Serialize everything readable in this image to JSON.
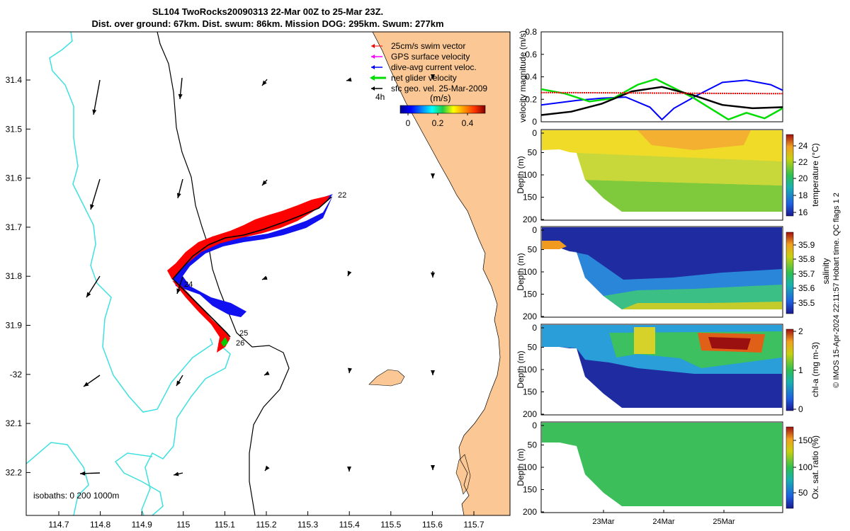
{
  "header": {
    "title_line1": "SL104 TwoRocks20090313 22-Mar 00Z to 25-Mar 23Z.",
    "title_line2": "Dist. over ground: 67km. Dist. swum: 86km. Mission DOG: 295km. Swum: 277km"
  },
  "map": {
    "legend": [
      {
        "label": "25cm/s swim vector",
        "color": "#ff0000"
      },
      {
        "label": "GPS surface velocity",
        "color": "#ff00ff"
      },
      {
        "label": "dive-avg current veloc.",
        "color": "#0000ff"
      },
      {
        "label": "net glider velocity",
        "color": "#00dd00"
      },
      {
        "label": "sfc geo. vel. 25-Mar-2009",
        "color": "#000000"
      }
    ],
    "time_step_label": "4h",
    "colorbar_unit": "(m/s)",
    "colorbar_ticks": [
      "0",
      "0.2",
      "0.4"
    ],
    "isobaths_label": "isobaths: 0   200  1000m",
    "day_labels": [
      {
        "text": "22",
        "lon": 115.37,
        "lat": -31.635
      },
      {
        "text": "24",
        "lon": 115.0,
        "lat": -31.815
      },
      {
        "text": "25",
        "lon": 115.13,
        "lat": -31.915
      },
      {
        "text": "26",
        "lon": 115.12,
        "lat": -31.935
      }
    ],
    "lon_ticks": [
      "114.7",
      "114.8",
      "114.9",
      "115",
      "115.1",
      "115.2",
      "115.3",
      "115.4",
      "115.5",
      "115.6",
      "115.7"
    ],
    "lat_ticks": [
      "31.4",
      "31.5",
      "31.6",
      "31.7",
      "31.8",
      "31.9",
      "-32",
      "32.1",
      "32.2"
    ],
    "colors": {
      "land": "#fbc895",
      "isobath0": "#40e0e0",
      "isobath_deep": "#000000"
    }
  },
  "right_panels": {
    "velocity": {
      "ylabel": "velocity magnitude (m/s)",
      "yticks": [
        "0",
        "0.2",
        "0.4",
        "0.6",
        "0.8"
      ]
    },
    "depth_label": "Depth (m)",
    "depth_ticks": [
      "0",
      "50",
      "100",
      "150",
      "200"
    ],
    "x_ticks": [
      "23Mar",
      "24Mar",
      "25Mar"
    ],
    "temperature": {
      "label": "temperature (°C)",
      "ticks": [
        "16",
        "18",
        "20",
        "22",
        "24"
      ]
    },
    "salinity": {
      "label": "salinity",
      "ticks": [
        "35.5",
        "35.6",
        "35.7",
        "35.8",
        "35.9"
      ]
    },
    "chla": {
      "label": "chl-a (mg m-3)",
      "ticks": [
        "0",
        "1",
        "2"
      ]
    },
    "oxygen": {
      "label": "Ox. sat. ratio (%)",
      "ticks": [
        "50",
        "100",
        "150"
      ]
    }
  },
  "footer_note": "© IMOS 15-Apr-2024 22:11:57 Hobart time. QC flags 1  2",
  "chart_data": [
    {
      "type": "line",
      "title": "",
      "ylabel": "velocity magnitude (m/s)",
      "xlabel": "",
      "x_range": [
        "22-Mar 00Z",
        "25-Mar 23Z"
      ],
      "ylim": [
        0,
        0.8
      ],
      "series": [
        {
          "color": "#0000ff",
          "x_days": [
            0,
            0.3,
            0.6,
            1.0,
            1.4,
            1.8,
            2.0,
            2.2,
            2.6,
            3.0,
            3.4,
            3.8,
            4.0
          ],
          "values": [
            0.15,
            0.17,
            0.19,
            0.21,
            0.22,
            0.13,
            0.02,
            0.12,
            0.24,
            0.35,
            0.37,
            0.33,
            0.28
          ]
        },
        {
          "color": "#00dd00",
          "x_days": [
            0,
            0.4,
            0.8,
            1.2,
            1.6,
            1.9,
            2.2,
            2.5,
            2.8,
            3.1,
            3.4,
            3.7,
            4.0
          ],
          "values": [
            0.29,
            0.25,
            0.18,
            0.21,
            0.33,
            0.38,
            0.3,
            0.22,
            0.12,
            0.02,
            0.08,
            0.03,
            0.12
          ]
        },
        {
          "color": "#000000",
          "x_days": [
            0,
            0.5,
            1.0,
            1.5,
            2.0,
            2.5,
            3.0,
            3.5,
            4.0
          ],
          "values": [
            0.06,
            0.09,
            0.16,
            0.27,
            0.31,
            0.24,
            0.15,
            0.12,
            0.13
          ]
        },
        {
          "color": "#ff0000",
          "x_days": [
            0,
            4.0
          ],
          "values": [
            0.26,
            0.25
          ]
        }
      ]
    },
    {
      "type": "heatmap",
      "title": "",
      "ylabel": "Depth (m)",
      "colorbar_label": "temperature (°C)",
      "clim": [
        15.5,
        25.5
      ],
      "ylim": [
        0,
        200
      ],
      "x_days": [
        0,
        4
      ],
      "description_values": {
        "surface": 23.5,
        "mid": 21.5,
        "deep": 19.5
      }
    },
    {
      "type": "heatmap",
      "ylabel": "Depth (m)",
      "colorbar_label": "salinity",
      "clim": [
        35.45,
        35.95
      ],
      "ylim": [
        0,
        200
      ],
      "description_values": {
        "surface": 35.5,
        "mid": 35.6,
        "deep": 35.7
      }
    },
    {
      "type": "heatmap",
      "ylabel": "Depth (m)",
      "colorbar_label": "chl-a (mg m-3)",
      "clim": [
        0,
        2
      ],
      "ylim": [
        0,
        200
      ],
      "description_values": {
        "surface": 0.9,
        "mid": 1.4,
        "deep": 0.2
      }
    },
    {
      "type": "heatmap",
      "ylabel": "Depth (m)",
      "colorbar_label": "Ox. sat. ratio (%)",
      "clim": [
        25,
        175
      ],
      "ylim": [
        0,
        200
      ],
      "description_values": {
        "surface": 105,
        "mid": 100,
        "deep": 95
      }
    }
  ]
}
